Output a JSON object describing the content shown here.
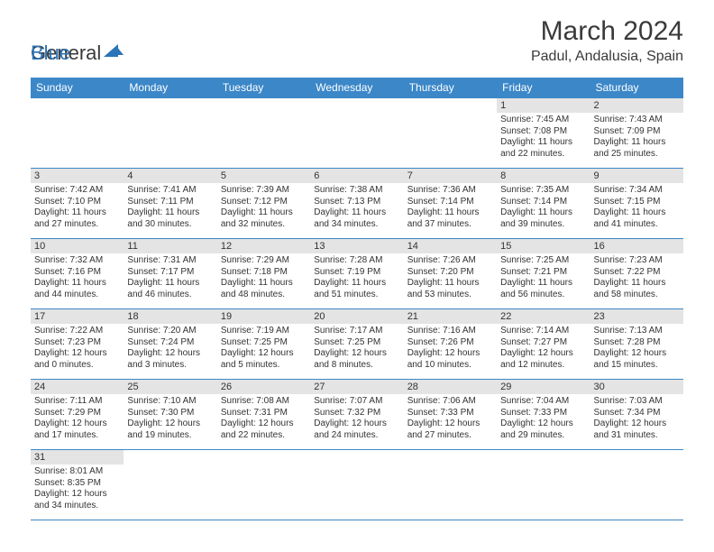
{
  "brand": {
    "part1": "General",
    "part2": "Blue"
  },
  "title": "March 2024",
  "location": "Padul, Andalusia, Spain",
  "day_headers": [
    "Sunday",
    "Monday",
    "Tuesday",
    "Wednesday",
    "Thursday",
    "Friday",
    "Saturday"
  ],
  "colors": {
    "header_bg": "#3b87c8",
    "header_text": "#ffffff",
    "daynum_bg": "#e4e4e4",
    "cell_border": "#3b87c8",
    "text": "#333333",
    "logo_gray": "#5a5a5a",
    "logo_blue": "#2a74b8"
  },
  "weeks": [
    [
      null,
      null,
      null,
      null,
      null,
      {
        "n": "1",
        "sunrise": "7:45 AM",
        "sunset": "7:08 PM",
        "day": "11 hours and 22 minutes."
      },
      {
        "n": "2",
        "sunrise": "7:43 AM",
        "sunset": "7:09 PM",
        "day": "11 hours and 25 minutes."
      }
    ],
    [
      {
        "n": "3",
        "sunrise": "7:42 AM",
        "sunset": "7:10 PM",
        "day": "11 hours and 27 minutes."
      },
      {
        "n": "4",
        "sunrise": "7:41 AM",
        "sunset": "7:11 PM",
        "day": "11 hours and 30 minutes."
      },
      {
        "n": "5",
        "sunrise": "7:39 AM",
        "sunset": "7:12 PM",
        "day": "11 hours and 32 minutes."
      },
      {
        "n": "6",
        "sunrise": "7:38 AM",
        "sunset": "7:13 PM",
        "day": "11 hours and 34 minutes."
      },
      {
        "n": "7",
        "sunrise": "7:36 AM",
        "sunset": "7:14 PM",
        "day": "11 hours and 37 minutes."
      },
      {
        "n": "8",
        "sunrise": "7:35 AM",
        "sunset": "7:14 PM",
        "day": "11 hours and 39 minutes."
      },
      {
        "n": "9",
        "sunrise": "7:34 AM",
        "sunset": "7:15 PM",
        "day": "11 hours and 41 minutes."
      }
    ],
    [
      {
        "n": "10",
        "sunrise": "7:32 AM",
        "sunset": "7:16 PM",
        "day": "11 hours and 44 minutes."
      },
      {
        "n": "11",
        "sunrise": "7:31 AM",
        "sunset": "7:17 PM",
        "day": "11 hours and 46 minutes."
      },
      {
        "n": "12",
        "sunrise": "7:29 AM",
        "sunset": "7:18 PM",
        "day": "11 hours and 48 minutes."
      },
      {
        "n": "13",
        "sunrise": "7:28 AM",
        "sunset": "7:19 PM",
        "day": "11 hours and 51 minutes."
      },
      {
        "n": "14",
        "sunrise": "7:26 AM",
        "sunset": "7:20 PM",
        "day": "11 hours and 53 minutes."
      },
      {
        "n": "15",
        "sunrise": "7:25 AM",
        "sunset": "7:21 PM",
        "day": "11 hours and 56 minutes."
      },
      {
        "n": "16",
        "sunrise": "7:23 AM",
        "sunset": "7:22 PM",
        "day": "11 hours and 58 minutes."
      }
    ],
    [
      {
        "n": "17",
        "sunrise": "7:22 AM",
        "sunset": "7:23 PM",
        "day": "12 hours and 0 minutes."
      },
      {
        "n": "18",
        "sunrise": "7:20 AM",
        "sunset": "7:24 PM",
        "day": "12 hours and 3 minutes."
      },
      {
        "n": "19",
        "sunrise": "7:19 AM",
        "sunset": "7:25 PM",
        "day": "12 hours and 5 minutes."
      },
      {
        "n": "20",
        "sunrise": "7:17 AM",
        "sunset": "7:25 PM",
        "day": "12 hours and 8 minutes."
      },
      {
        "n": "21",
        "sunrise": "7:16 AM",
        "sunset": "7:26 PM",
        "day": "12 hours and 10 minutes."
      },
      {
        "n": "22",
        "sunrise": "7:14 AM",
        "sunset": "7:27 PM",
        "day": "12 hours and 12 minutes."
      },
      {
        "n": "23",
        "sunrise": "7:13 AM",
        "sunset": "7:28 PM",
        "day": "12 hours and 15 minutes."
      }
    ],
    [
      {
        "n": "24",
        "sunrise": "7:11 AM",
        "sunset": "7:29 PM",
        "day": "12 hours and 17 minutes."
      },
      {
        "n": "25",
        "sunrise": "7:10 AM",
        "sunset": "7:30 PM",
        "day": "12 hours and 19 minutes."
      },
      {
        "n": "26",
        "sunrise": "7:08 AM",
        "sunset": "7:31 PM",
        "day": "12 hours and 22 minutes."
      },
      {
        "n": "27",
        "sunrise": "7:07 AM",
        "sunset": "7:32 PM",
        "day": "12 hours and 24 minutes."
      },
      {
        "n": "28",
        "sunrise": "7:06 AM",
        "sunset": "7:33 PM",
        "day": "12 hours and 27 minutes."
      },
      {
        "n": "29",
        "sunrise": "7:04 AM",
        "sunset": "7:33 PM",
        "day": "12 hours and 29 minutes."
      },
      {
        "n": "30",
        "sunrise": "7:03 AM",
        "sunset": "7:34 PM",
        "day": "12 hours and 31 minutes."
      }
    ],
    [
      {
        "n": "31",
        "sunrise": "8:01 AM",
        "sunset": "8:35 PM",
        "day": "12 hours and 34 minutes."
      },
      null,
      null,
      null,
      null,
      null,
      null
    ]
  ],
  "labels": {
    "sunrise": "Sunrise:",
    "sunset": "Sunset:",
    "daylight": "Daylight:"
  }
}
